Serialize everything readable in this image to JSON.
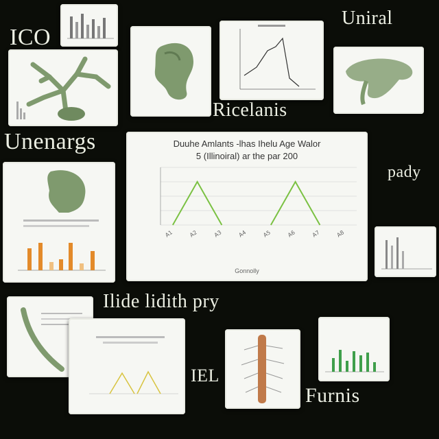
{
  "collage": {
    "caption_top_left": "ICO",
    "caption_top_right": "Uniral",
    "caption_left": "Unenargs",
    "caption_mid": "Ricelanis",
    "caption_mid_lower": "Ilide lidith pry",
    "caption_bottom_right": "Furnis",
    "caption_bottom_left": "IEL",
    "caption_right": "pady"
  },
  "main_chart": {
    "title_line1": "Duuhe Amlants  -lhas Ihelu  Age Walor",
    "title_line2": "5 (Illinoiral) ar the par 200",
    "xlabel": "Gonnolly"
  },
  "chart_data": {
    "type": "line",
    "categories": [
      "A1",
      "A2",
      "A3",
      "A4",
      "A5",
      "A6",
      "A7",
      "A8"
    ],
    "series": [
      {
        "values": [
          0,
          6,
          0,
          null,
          null,
          null,
          null,
          null
        ]
      },
      {
        "values": [
          null,
          null,
          null,
          null,
          0,
          6,
          0,
          null
        ]
      }
    ],
    "ylim": [
      0,
      8
    ],
    "grid": true,
    "colors": {
      "line": "#7ac142",
      "grid": "#d8d8d8"
    }
  },
  "accent": {
    "specimen_green": "#7f9a6e",
    "bar_orange": "#e38a2a",
    "bar_green": "#3f9f4b"
  }
}
